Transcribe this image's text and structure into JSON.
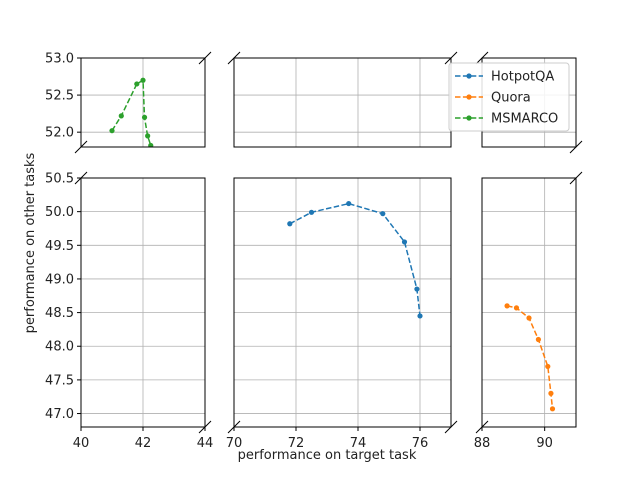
{
  "chart_data": {
    "type": "line",
    "title": "",
    "xlabel": "performance on target task",
    "ylabel": "performance on other tasks",
    "grid": true,
    "legend_position": "top-right",
    "panels": {
      "x_ranges": [
        [
          40,
          44
        ],
        [
          70,
          77
        ],
        [
          88,
          91
        ]
      ],
      "y_ranges": [
        [
          51.8,
          53.0
        ],
        [
          46.8,
          50.5
        ]
      ],
      "x_ticks": [
        [
          40,
          42,
          44
        ],
        [
          70,
          72,
          74,
          76
        ],
        [
          88,
          90
        ]
      ],
      "y_ticks": [
        [
          52.0,
          52.5,
          53.0
        ],
        [
          47.0,
          47.5,
          48.0,
          48.5,
          49.0,
          49.5,
          50.0,
          50.5
        ]
      ],
      "x_tick_labels": [
        [
          "40",
          "42",
          "44"
        ],
        [
          "70",
          "72",
          "74",
          "76"
        ],
        [
          "88",
          "90"
        ]
      ],
      "y_tick_labels": [
        [
          "52.0",
          "52.5",
          "53.0"
        ],
        [
          "47.0",
          "47.5",
          "48.0",
          "48.5",
          "49.0",
          "49.5",
          "50.0",
          "50.5"
        ]
      ]
    },
    "series": [
      {
        "name": "HotpotQA",
        "color": "#1f77b4",
        "x": [
          71.8,
          72.5,
          73.7,
          74.8,
          75.5,
          75.9,
          76.0
        ],
        "y": [
          49.82,
          49.99,
          50.12,
          49.97,
          49.55,
          48.85,
          48.45
        ]
      },
      {
        "name": "Quora",
        "color": "#ff7f0e",
        "x": [
          88.8,
          89.1,
          89.5,
          89.8,
          90.1,
          90.2,
          90.25
        ],
        "y": [
          48.6,
          48.57,
          48.42,
          48.1,
          47.7,
          47.3,
          47.07
        ]
      },
      {
        "name": "MSMARCO",
        "color": "#2ca02c",
        "x": [
          41.0,
          41.3,
          41.8,
          42.0,
          42.05,
          42.15,
          42.25
        ],
        "y": [
          52.02,
          52.22,
          52.65,
          52.7,
          52.2,
          51.95,
          51.82
        ]
      }
    ]
  }
}
